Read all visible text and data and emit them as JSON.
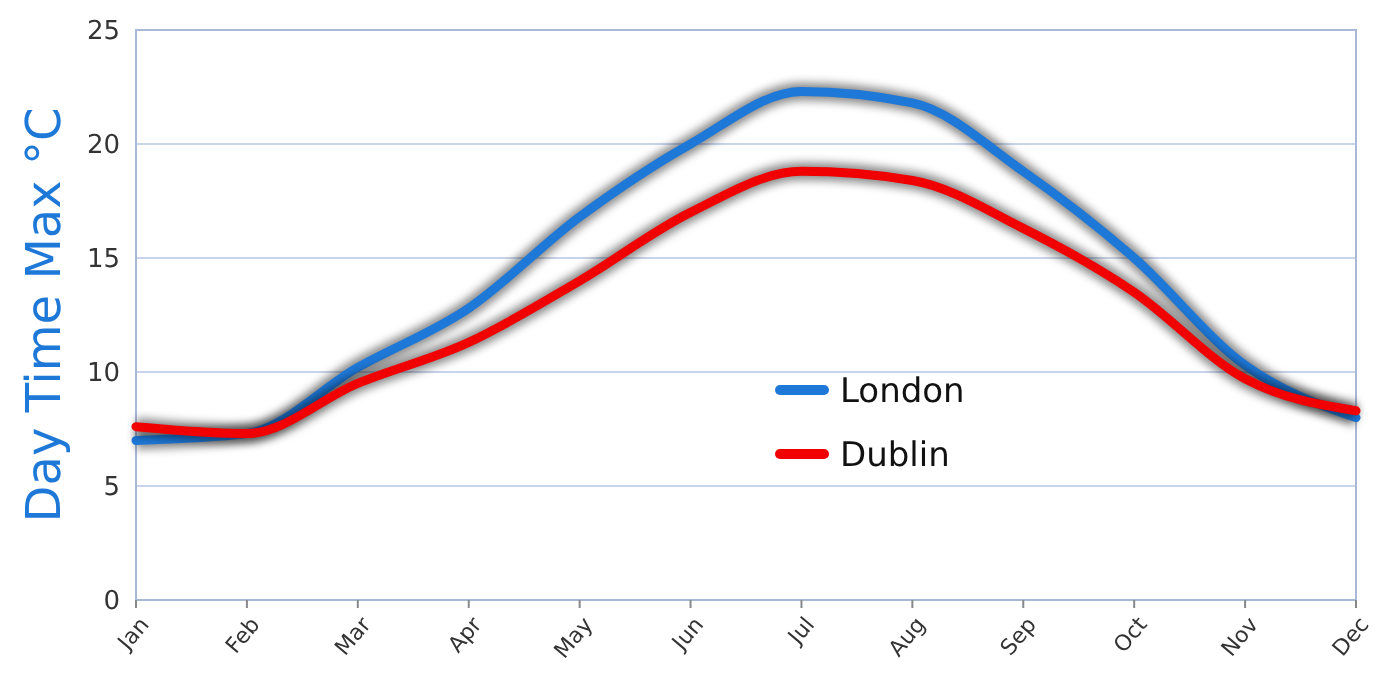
{
  "chart_data": {
    "type": "line",
    "ylabel": "Day Time Max °C",
    "categories": [
      "Jan",
      "Feb",
      "Mar",
      "Apr",
      "May",
      "Jun",
      "Jul",
      "Aug",
      "Sep",
      "Oct",
      "Nov",
      "Dec"
    ],
    "series": [
      {
        "name": "London",
        "color": "#1e78d7",
        "values": [
          7.0,
          7.3,
          10.2,
          12.8,
          16.8,
          20.0,
          22.3,
          21.8,
          18.8,
          15.0,
          10.3,
          8.0
        ]
      },
      {
        "name": "Dublin",
        "color": "#f00000",
        "values": [
          7.6,
          7.3,
          9.5,
          11.3,
          14.0,
          17.0,
          18.8,
          18.4,
          16.3,
          13.5,
          9.7,
          8.3
        ]
      }
    ],
    "ylim": [
      0,
      25
    ],
    "yticks": [
      0,
      5,
      10,
      15,
      20,
      25
    ],
    "grid": "y",
    "legend": "center",
    "marker": "none",
    "line_style": "solid"
  }
}
